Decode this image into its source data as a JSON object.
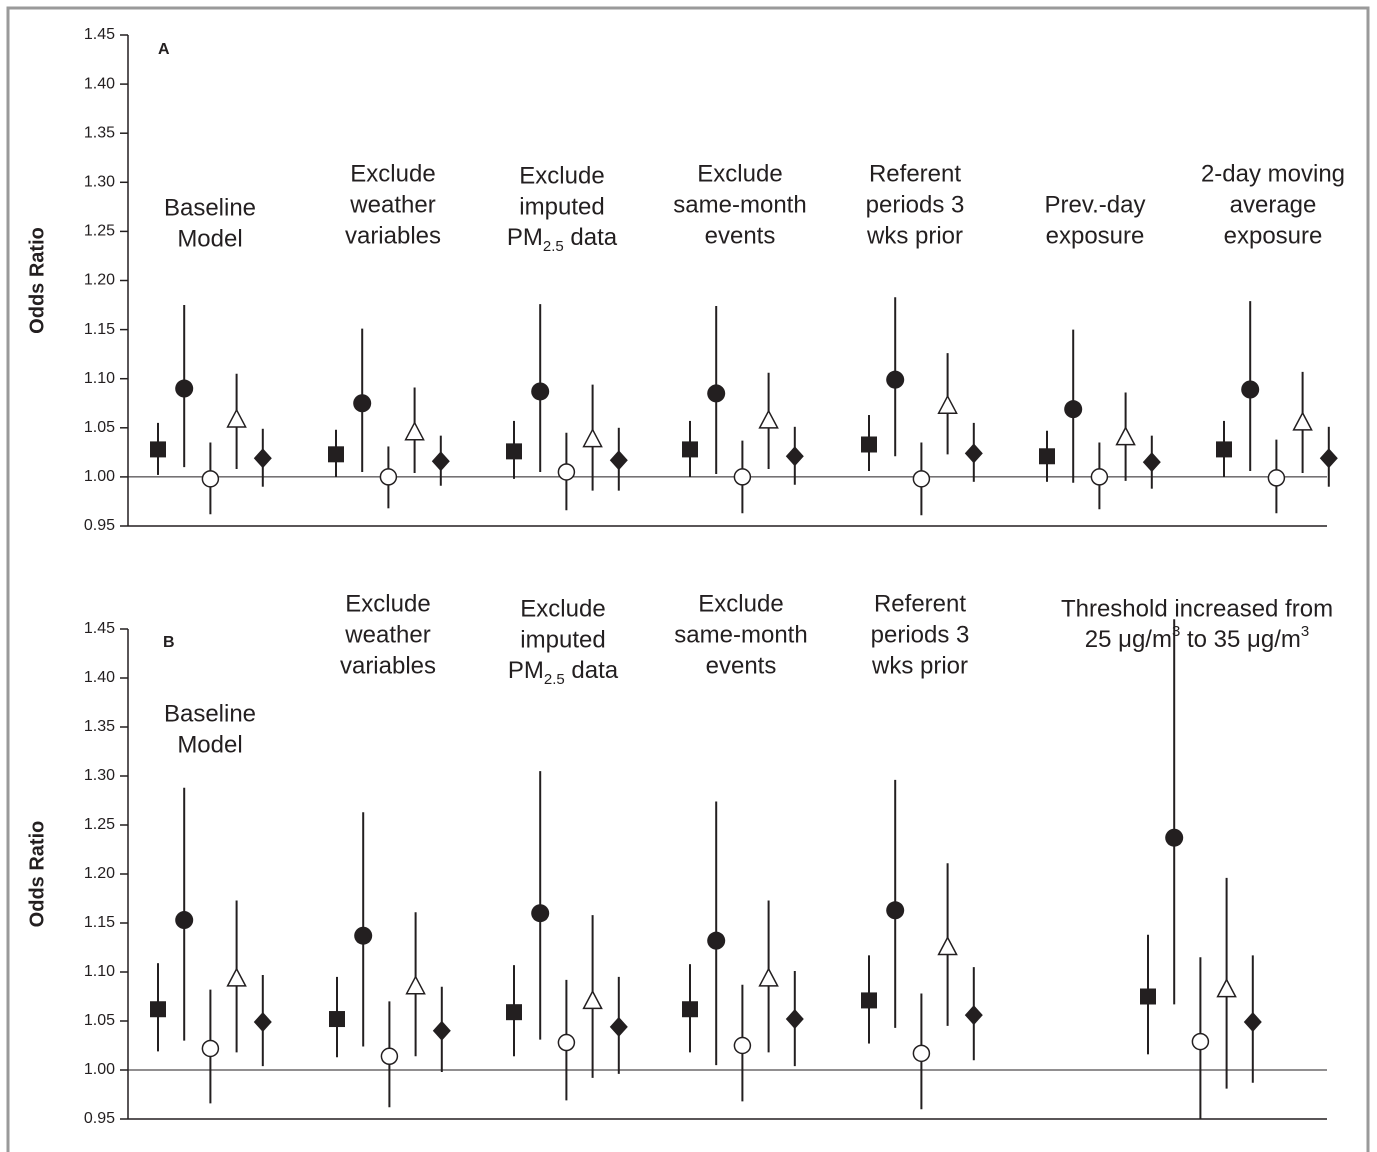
{
  "chart_data": [
    {
      "type": "errorbar",
      "panel_label": "A",
      "ylabel": "Odds Ratio",
      "ylim": [
        0.95,
        1.45
      ],
      "yticks": [
        0.95,
        {
          "value": 1,
          "label": "1.00"
        },
        1.05,
        {
          "value": 1.1,
          "label": "1.10"
        },
        1.15,
        {
          "value": 1.2,
          "label": "1.20"
        },
        1.25,
        {
          "value": 1.3,
          "label": "1.30"
        },
        1.35,
        {
          "value": 1.4,
          "label": "1.40"
        },
        1.45
      ],
      "refline": 1,
      "categories": [
        [
          "Baseline",
          "Model"
        ],
        [
          "Exclude",
          "weather",
          "variables"
        ],
        [
          "Exclude",
          "imputed",
          [
            "PM",
            {
              "sub": "2.5"
            },
            " data"
          ]
        ],
        [
          "Exclude",
          "same-month",
          "events"
        ],
        [
          "Referent",
          "periods 3",
          "wks prior"
        ],
        [
          "Prev.-day",
          "exposure"
        ],
        [
          "2-day moving",
          "average",
          "exposure"
        ]
      ],
      "series": [
        {
          "marker": "square",
          "color": "#231f20",
          "values": [
            1.028,
            1.023,
            1.026,
            1.028,
            1.033,
            1.021,
            1.028
          ],
          "lower": [
            1.002,
            1.0,
            0.998,
            1.0,
            1.006,
            0.995,
            1.0
          ],
          "upper": [
            1.055,
            1.048,
            1.057,
            1.057,
            1.063,
            1.047,
            1.057
          ]
        },
        {
          "marker": "circle",
          "color": "#231f20",
          "values": [
            1.09,
            1.075,
            1.087,
            1.085,
            1.099,
            1.069,
            1.089
          ],
          "lower": [
            1.01,
            1.005,
            1.005,
            1.003,
            1.021,
            0.994,
            1.006
          ],
          "upper": [
            1.175,
            1.151,
            1.176,
            1.174,
            1.183,
            1.15,
            1.179
          ]
        },
        {
          "marker": "open-circle",
          "color": "#231f20",
          "values": [
            0.998,
            1.0,
            1.005,
            1.0,
            0.998,
            1.0,
            0.999
          ],
          "lower": [
            0.962,
            0.968,
            0.966,
            0.963,
            0.961,
            0.967,
            0.963
          ],
          "upper": [
            1.035,
            1.031,
            1.045,
            1.037,
            1.035,
            1.035,
            1.038
          ]
        },
        {
          "marker": "open-triangle",
          "color": "#231f20",
          "values": [
            1.058,
            1.045,
            1.038,
            1.057,
            1.072,
            1.04,
            1.055
          ],
          "lower": [
            1.008,
            1.004,
            0.986,
            1.008,
            1.023,
            0.996,
            1.004
          ],
          "upper": [
            1.105,
            1.091,
            1.094,
            1.106,
            1.126,
            1.086,
            1.107
          ]
        },
        {
          "marker": "diamond",
          "color": "#231f20",
          "values": [
            1.019,
            1.016,
            1.017,
            1.021,
            1.024,
            1.015,
            1.019
          ],
          "lower": [
            0.99,
            0.991,
            0.986,
            0.992,
            0.995,
            0.988,
            0.99
          ],
          "upper": [
            1.049,
            1.042,
            1.05,
            1.051,
            1.055,
            1.042,
            1.051
          ]
        }
      ]
    },
    {
      "type": "errorbar",
      "panel_label": "B",
      "ylabel": "Odds Ratio",
      "ylim": [
        0.95,
        1.45
      ],
      "yticks": [
        0.95,
        {
          "value": 1,
          "label": "1.00"
        },
        1.05,
        {
          "value": 1.1,
          "label": "1.10"
        },
        1.15,
        {
          "value": 1.2,
          "label": "1.20"
        },
        1.25,
        {
          "value": 1.3,
          "label": "1.30"
        },
        1.35,
        {
          "value": 1.4,
          "label": "1.40"
        },
        1.45
      ],
      "refline": 1,
      "categories": [
        [
          "Baseline",
          "Model"
        ],
        [
          "Exclude",
          "weather",
          "variables"
        ],
        [
          "Exclude",
          "imputed",
          [
            "PM",
            {
              "sub": "2.5"
            },
            " data"
          ]
        ],
        [
          "Exclude",
          "same-month",
          "events"
        ],
        [
          "Referent",
          "periods 3",
          "wks prior"
        ],
        [
          "Threshold increased from",
          [
            "25 μg/m",
            {
              "sup": "3"
            },
            " to 35 μg/m",
            {
              "sup": "3"
            }
          ]
        ]
      ],
      "series": [
        {
          "marker": "square",
          "color": "#231f20",
          "values": [
            1.062,
            1.052,
            1.059,
            1.062,
            1.071,
            1.075
          ],
          "lower": [
            1.019,
            1.013,
            1.014,
            1.018,
            1.027,
            1.016
          ],
          "upper": [
            1.109,
            1.095,
            1.107,
            1.108,
            1.117,
            1.138
          ]
        },
        {
          "marker": "circle",
          "color": "#231f20",
          "values": [
            1.153,
            1.137,
            1.16,
            1.132,
            1.163,
            1.237
          ],
          "lower": [
            1.03,
            1.024,
            1.031,
            1.005,
            1.043,
            1.067
          ],
          "upper": [
            1.288,
            1.263,
            1.305,
            1.274,
            1.296,
            1.46
          ]
        },
        {
          "marker": "open-circle",
          "color": "#231f20",
          "values": [
            1.022,
            1.014,
            1.028,
            1.025,
            1.017,
            1.029
          ],
          "lower": [
            0.966,
            0.962,
            0.969,
            0.968,
            0.96,
            0.95
          ],
          "upper": [
            1.082,
            1.07,
            1.092,
            1.087,
            1.078,
            1.115
          ]
        },
        {
          "marker": "open-triangle",
          "color": "#231f20",
          "values": [
            1.093,
            1.085,
            1.07,
            1.093,
            1.125,
            1.082
          ],
          "lower": [
            1.018,
            1.014,
            0.992,
            1.018,
            1.045,
            0.981
          ],
          "upper": [
            1.173,
            1.161,
            1.158,
            1.173,
            1.211,
            1.196
          ]
        },
        {
          "marker": "diamond",
          "color": "#231f20",
          "values": [
            1.049,
            1.04,
            1.044,
            1.052,
            1.056,
            1.049
          ],
          "lower": [
            1.004,
            0.998,
            0.996,
            1.004,
            1.01,
            0.987
          ],
          "upper": [
            1.097,
            1.085,
            1.095,
            1.101,
            1.105,
            1.117
          ]
        }
      ]
    }
  ]
}
